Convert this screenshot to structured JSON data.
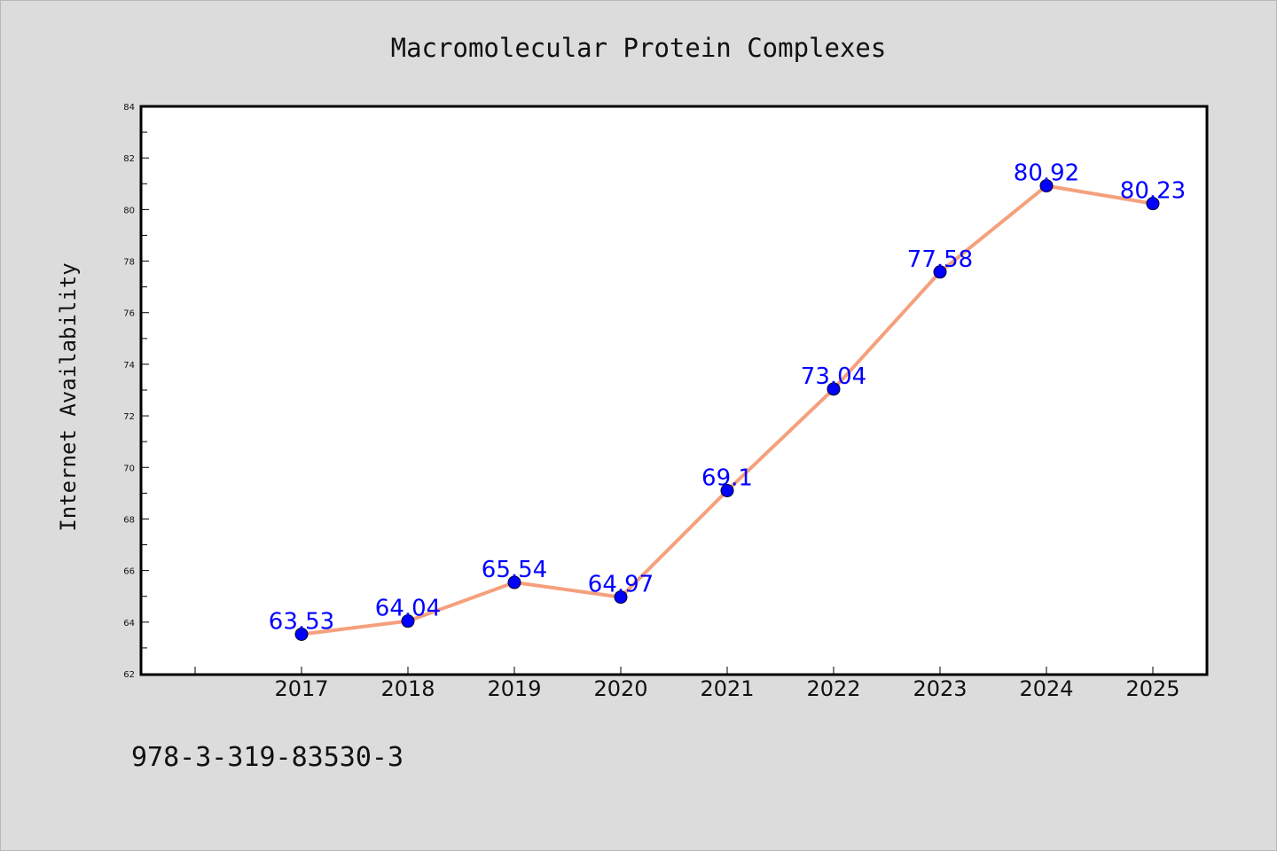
{
  "chart_data": {
    "type": "line",
    "title": "Macromolecular Protein Complexes",
    "xlabel": "",
    "ylabel": "Internet Availability",
    "categories": [
      "2017",
      "2018",
      "2019",
      "2020",
      "2021",
      "2022",
      "2023",
      "2024",
      "2025"
    ],
    "series": [
      {
        "values": [
          63.53,
          64.04,
          65.54,
          64.97,
          69.1,
          73.04,
          77.58,
          80.92,
          80.23
        ],
        "data_labels": [
          "63.53",
          "64.04",
          "65.54",
          "64.97",
          "69.1",
          "73.04",
          "77.58",
          "80.92",
          "80.23"
        ]
      }
    ],
    "ylim": [
      62,
      84
    ],
    "y_ticks": [
      "62",
      "64",
      "66",
      "68",
      "70",
      "72",
      "74",
      "76",
      "78",
      "80",
      "82",
      "84"
    ],
    "grid": false,
    "legend": "none",
    "colors": {
      "line": "#f5a07c",
      "marker": "#0000ff",
      "data_label": "#0000ff",
      "background": "#dcdcdc",
      "plot_area": "#ffffff"
    }
  },
  "footer_text": "978-3-319-83530-3"
}
